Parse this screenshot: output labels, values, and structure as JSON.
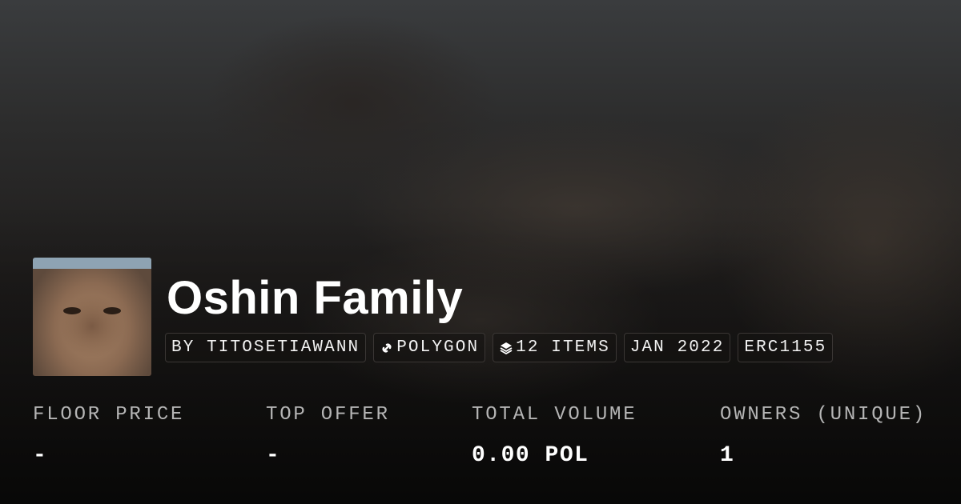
{
  "collection": {
    "name": "Oshin Family",
    "tags": [
      {
        "label": "BY TITOSETIAWANN",
        "icon": null
      },
      {
        "label": "POLYGON",
        "icon": "link-icon"
      },
      {
        "label": "12 ITEMS",
        "icon": "layers-icon"
      },
      {
        "label": "JAN 2022",
        "icon": null
      },
      {
        "label": "ERC1155",
        "icon": null
      }
    ]
  },
  "stats": [
    {
      "label": "FLOOR PRICE",
      "value": "-"
    },
    {
      "label": "TOP OFFER",
      "value": "-"
    },
    {
      "label": "TOTAL VOLUME",
      "value": "0.00 POL"
    },
    {
      "label": "OWNERS (UNIQUE)",
      "value": "1"
    }
  ]
}
